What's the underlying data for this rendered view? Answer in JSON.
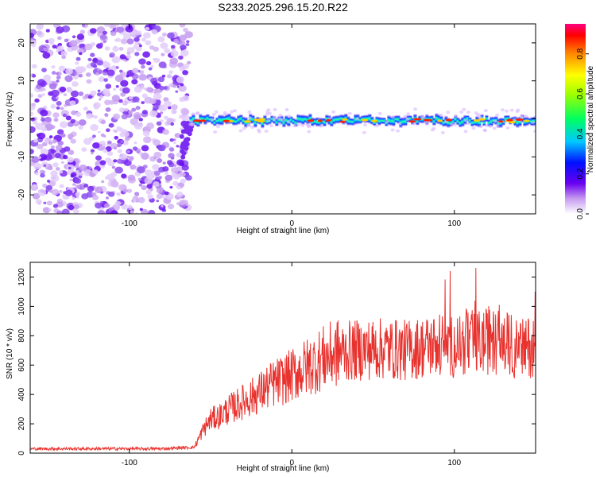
{
  "title": "S233.2025.296.15.20.R22",
  "chart_data": [
    {
      "type": "heatmap",
      "xlabel": "Height of straight line (km)",
      "ylabel": "Frequency (Hz)",
      "xlim": [
        -161,
        150
      ],
      "ylim": [
        -25,
        25
      ],
      "xticks": [
        -100,
        0,
        100
      ],
      "xtick_labels": [
        "-100",
        "0",
        "100"
      ],
      "yticks": [
        -20,
        -10,
        0,
        10,
        20
      ],
      "ytick_labels": [
        "-20",
        "-10",
        "0",
        "10",
        "20"
      ],
      "noise_region_x": [
        -161,
        -63
      ],
      "signal_band_center_hz": -0.5,
      "colorbar": {
        "label": "Normalized spectral amplitude",
        "range": [
          0.0,
          0.95
        ],
        "ticks": [
          0.0,
          0.2,
          0.4,
          0.6,
          0.8
        ],
        "tick_labels": [
          "0.0",
          "0.2",
          "0.4",
          "0.6",
          "0.8"
        ]
      }
    },
    {
      "type": "line",
      "xlabel": "Height of straight line (km)",
      "ylabel": "SNR (10 * v/v)",
      "xlim": [
        -161,
        150
      ],
      "ylim": [
        0,
        1300
      ],
      "xticks": [
        -100,
        0,
        100
      ],
      "xtick_labels": [
        "-100",
        "0",
        "100"
      ],
      "yticks": [
        0,
        200,
        400,
        600,
        800,
        1000,
        1200
      ],
      "ytick_labels": [
        "0",
        "200",
        "400",
        "600",
        "800",
        "1000",
        "1200"
      ],
      "series": [
        {
          "name": "SNR",
          "color": "#e8322e",
          "x": [
            -161,
            -140,
            -120,
            -100,
            -80,
            -60,
            -55,
            -50,
            -45,
            -40,
            -35,
            -30,
            -25,
            -20,
            -15,
            -10,
            -5,
            0,
            5,
            10,
            15,
            20,
            25,
            30,
            40,
            50,
            60,
            70,
            80,
            90,
            100,
            110,
            120,
            130,
            140,
            150
          ],
          "y": [
            30,
            30,
            30,
            30,
            30,
            40,
            150,
            230,
            250,
            290,
            320,
            350,
            380,
            410,
            450,
            480,
            500,
            530,
            560,
            590,
            620,
            650,
            670,
            690,
            700,
            710,
            710,
            700,
            720,
            740,
            730,
            750,
            760,
            760,
            700,
            740
          ]
        }
      ]
    }
  ]
}
